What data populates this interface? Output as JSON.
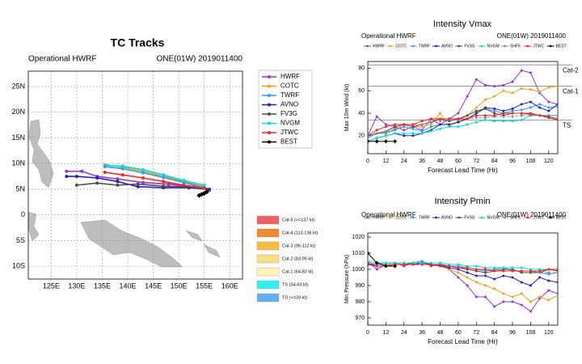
{
  "chart_data": [
    {
      "type": "line",
      "title": "TC Tracks",
      "subtitle_left": "Operational HWRF",
      "subtitle_right": "ONE(01W) 2019011400",
      "xlim": [
        120.5,
        162.5
      ],
      "ylim": [
        -12.5,
        28
      ],
      "grid": true,
      "legend": "upper right",
      "xticks": [
        {
          "value": 125,
          "label": "125E"
        },
        {
          "value": 130,
          "label": "130E"
        },
        {
          "value": 135,
          "label": "135E"
        },
        {
          "value": 140,
          "label": "140E"
        },
        {
          "value": 145,
          "label": "145E"
        },
        {
          "value": 150,
          "label": "150E"
        },
        {
          "value": 155,
          "label": "155E"
        },
        {
          "value": 160,
          "label": "160E"
        }
      ],
      "yticks": [
        {
          "value": 25,
          "label": "25N"
        },
        {
          "value": 20,
          "label": "20N"
        },
        {
          "value": 15,
          "label": "15N"
        },
        {
          "value": 10,
          "label": "10N"
        },
        {
          "value": 5,
          "label": "5N"
        },
        0,
        {
          "value": -5,
          "label": "5S"
        },
        {
          "value": -10,
          "label": "10S"
        }
      ],
      "series": [
        {
          "name": "HWRF",
          "color": "#9933cc",
          "x": [
            156,
            153,
            148,
            143,
            138,
            134,
            131,
            128
          ],
          "values": [
            4.8,
            5.5,
            6,
            6.3,
            7,
            7.5,
            8.5,
            8.5
          ]
        },
        {
          "name": "COTC",
          "color": "#f0a020",
          "x": [
            155,
            151,
            147,
            143,
            139,
            135.5
          ],
          "values": [
            5.5,
            6.5,
            7.5,
            8.5,
            9.3,
            9.8
          ]
        },
        {
          "name": "TWRF",
          "color": "#3399ff",
          "x": [
            155,
            151,
            147,
            143,
            139,
            135.5
          ],
          "values": [
            5.3,
            6.3,
            7.3,
            8.2,
            9,
            9.4
          ]
        },
        {
          "name": "AVNO",
          "color": "#2222bb",
          "x": [
            156,
            152,
            147,
            142,
            138,
            134,
            130,
            128
          ],
          "values": [
            5,
            5.3,
            5.3,
            5.5,
            6.5,
            7.2,
            7.5,
            7.5
          ]
        },
        {
          "name": "FV3G",
          "color": "#5a4a3a",
          "x": [
            155.5,
            152,
            147,
            142,
            138,
            134,
            130
          ],
          "values": [
            5,
            5.5,
            5.6,
            6,
            5.8,
            6.2,
            5.8
          ]
        },
        {
          "name": "NVGM",
          "color": "#00dddd",
          "x": [
            155,
            151,
            147,
            143,
            139,
            136
          ],
          "values": [
            5.8,
            6.7,
            7.8,
            8.8,
            9.5,
            9.6
          ]
        },
        {
          "name": "JTWC",
          "color": "#ff2222",
          "x": [
            155,
            151,
            147,
            143,
            139,
            135.5
          ],
          "values": [
            5.2,
            5.8,
            6.5,
            7.2,
            7.8,
            8.3
          ]
        },
        {
          "name": "BEST",
          "color": "#000000",
          "x": [
            155.5,
            155,
            154.5,
            154
          ],
          "values": [
            4.5,
            4.2,
            4,
            3.8
          ]
        }
      ],
      "category_legend": [
        {
          "label": "Cat-5 (>=137 kt)",
          "color": "#f06060"
        },
        {
          "label": "Cat-4 (113-136 kt)",
          "color": "#f08c30"
        },
        {
          "label": "Cat-3 (96-112 kt)",
          "color": "#f8bc40"
        },
        {
          "label": "Cat-2 (83-95 kt)",
          "color": "#f8e080"
        },
        {
          "label": "Cat-1 (64-82 kt)",
          "color": "#fff4b8"
        },
        {
          "label": "TS (34-63 kt)",
          "color": "#30f0f0"
        },
        {
          "label": "TD (<=33 kt)",
          "color": "#60b0f0"
        }
      ]
    },
    {
      "type": "line",
      "title": "Intensity Vmax",
      "subtitle_left": "Operational HWRF",
      "subtitle_right": "ONE(01W) 2019011400",
      "xlabel": "Forecast Lead Time (Hr)",
      "ylabel": "Max 10m Wind (kt)",
      "legend": "top",
      "xlim": [
        0,
        126
      ],
      "ylim": [
        4,
        86
      ],
      "xticks": [
        0,
        12,
        24,
        36,
        48,
        60,
        72,
        84,
        96,
        108,
        120
      ],
      "yticks": [
        20,
        40,
        60,
        80
      ],
      "reference_lines": [
        {
          "value": 83,
          "label": "Cat-2"
        },
        {
          "value": 64,
          "label": "Cat-1"
        },
        {
          "value": 34,
          "label": "TS"
        }
      ],
      "x": [
        0,
        6,
        12,
        18,
        24,
        30,
        36,
        42,
        48,
        54,
        60,
        66,
        72,
        78,
        84,
        90,
        96,
        102,
        108,
        114,
        120,
        126
      ],
      "series": [
        {
          "name": "HWRF",
          "color": "#9933cc",
          "values": [
            20,
            37,
            30,
            28,
            25,
            28,
            25,
            35,
            30,
            35,
            40,
            55,
            70,
            65,
            64,
            65,
            68,
            78,
            76,
            58,
            50,
            48
          ]
        },
        {
          "name": "COTC",
          "color": "#f0a020",
          "values": [
            20,
            22,
            22,
            25,
            30,
            28,
            28,
            30,
            40,
            28,
            33,
            38,
            45,
            52,
            55,
            60,
            58,
            62,
            61,
            59,
            63,
            64
          ]
        },
        {
          "name": "TWRF",
          "color": "#3399ff",
          "values": [
            18,
            22,
            23,
            25,
            28,
            26,
            24,
            28,
            30,
            30,
            32,
            35,
            40,
            44,
            42,
            40,
            42,
            43,
            45,
            48,
            45,
            46
          ]
        },
        {
          "name": "AVNO",
          "color": "#2222bb",
          "values": [
            15,
            18,
            20,
            22,
            20,
            20,
            22,
            25,
            30,
            30,
            32,
            35,
            40,
            45,
            44,
            42,
            44,
            48,
            50,
            45,
            42,
            48
          ]
        },
        {
          "name": "FV3G",
          "color": "#5a4a3a",
          "values": [
            20,
            22,
            24,
            28,
            30,
            28,
            30,
            32,
            35,
            33,
            35,
            38,
            42,
            44,
            40,
            38,
            40,
            40,
            39,
            38,
            36,
            34
          ]
        },
        {
          "name": "NVGM",
          "color": "#00dddd",
          "values": [
            15,
            18,
            20,
            22,
            22,
            22,
            22,
            24,
            26,
            28,
            28,
            30,
            32,
            34,
            33,
            33,
            33,
            34,
            38,
            38,
            38,
            38
          ]
        },
        {
          "name": "SHF5",
          "color": "#888888",
          "values": [
            20,
            22,
            24,
            26,
            28,
            30,
            30,
            32,
            33,
            34,
            34,
            35,
            36,
            36,
            37,
            37,
            37,
            38,
            38,
            38,
            38,
            38
          ]
        },
        {
          "name": "JTWC",
          "color": "#ff2222",
          "values": [
            20,
            25,
            28,
            30,
            30,
            30,
            33,
            35,
            35,
            35,
            35,
            35,
            38,
            38,
            38,
            40,
            40,
            40,
            40,
            38,
            37,
            35
          ]
        },
        {
          "name": "BEST",
          "color": "#000000",
          "values": [
            15,
            15,
            15,
            15,
            null,
            null,
            null,
            null,
            null,
            null,
            null,
            null,
            null,
            null,
            null,
            null,
            null,
            null,
            null,
            null,
            null,
            null
          ]
        }
      ]
    },
    {
      "type": "line",
      "title": "Intensity Pmin",
      "subtitle_left": "Operational HWRF",
      "subtitle_right": "ONE(01W) 2019011400",
      "xlabel": "Forecast Lead Time (Hr)",
      "ylabel": "Min Pressure (hPa)",
      "legend": "top",
      "xlim": [
        0,
        126
      ],
      "ylim": [
        965.5,
        1022.5
      ],
      "xticks": [
        0,
        12,
        24,
        36,
        48,
        60,
        72,
        84,
        96,
        108,
        120
      ],
      "yticks": [
        970,
        980,
        990,
        1000,
        1010,
        1020
      ],
      "x": [
        0,
        6,
        12,
        18,
        24,
        30,
        36,
        42,
        48,
        54,
        60,
        66,
        72,
        78,
        84,
        90,
        96,
        102,
        108,
        114,
        120,
        126
      ],
      "series": [
        {
          "name": "HWRF",
          "color": "#9933cc",
          "values": [
            1005,
            1000,
            1003,
            1004,
            1002,
            1004,
            1005,
            1002,
            1003,
            1000,
            995,
            990,
            983,
            983,
            977,
            980,
            980,
            978,
            974,
            982,
            987,
            985
          ]
        },
        {
          "name": "COTC",
          "color": "#f0a020",
          "values": [
            1004,
            1003,
            1003,
            1004,
            1003,
            1003,
            1004,
            1003,
            1002,
            1000,
            998,
            995,
            992,
            990,
            988,
            985,
            983,
            985,
            980,
            983,
            981,
            984
          ]
        },
        {
          "name": "TWRF",
          "color": "#3399ff",
          "values": [
            1004,
            1003,
            1004,
            1004,
            1004,
            1004,
            1005,
            1003,
            1003,
            1002,
            1002,
            1001,
            1000,
            999,
            1000,
            1001,
            999,
            999,
            999,
            998,
            997,
            998
          ]
        },
        {
          "name": "AVNO",
          "color": "#2222bb",
          "values": [
            1003,
            1002,
            1002,
            1003,
            1003,
            1003,
            1004,
            1003,
            1002,
            1001,
            1000,
            998,
            996,
            996,
            994,
            996,
            995,
            992,
            990,
            995,
            993,
            992
          ]
        },
        {
          "name": "FV3G",
          "color": "#5a4a3a",
          "values": [
            1004,
            1002,
            1002,
            1003,
            1003,
            1004,
            1004,
            1003,
            1003,
            1002,
            1001,
            1000,
            999,
            998,
            999,
            1000,
            1000,
            998,
            998,
            998,
            1000,
            999
          ]
        },
        {
          "name": "NVGM",
          "color": "#00dddd",
          "values": [
            1005,
            1004,
            1004,
            1004,
            1004,
            1004,
            1004,
            1004,
            1004,
            1003,
            1003,
            1002,
            1002,
            1001,
            1001,
            1001,
            1001,
            1001,
            1000,
            1000,
            1000,
            1000
          ]
        },
        {
          "name": "SHF5",
          "color": "#888888",
          "values": [
            1004,
            1003,
            1003,
            1003,
            1003,
            1003,
            1003,
            1003,
            1002,
            1002,
            1001,
            1001,
            1000,
            1000,
            1000,
            999,
            999,
            999,
            999,
            998,
            998,
            998
          ]
        },
        {
          "name": "JTWC",
          "color": "#ff2222",
          "values": [
            1004,
            1002,
            1002,
            1003,
            1003,
            1003,
            1003,
            1003,
            1002,
            1002,
            1001,
            1001,
            1000,
            1000,
            999,
            999,
            999,
            999,
            999,
            999,
            1000,
            1000
          ]
        },
        {
          "name": "BEST",
          "color": "#000000",
          "values": [
            1010,
            1004,
            1002,
            1002,
            null,
            null,
            null,
            null,
            null,
            null,
            null,
            null,
            null,
            null,
            null,
            null,
            null,
            null,
            null,
            null,
            null,
            null
          ]
        }
      ]
    }
  ]
}
